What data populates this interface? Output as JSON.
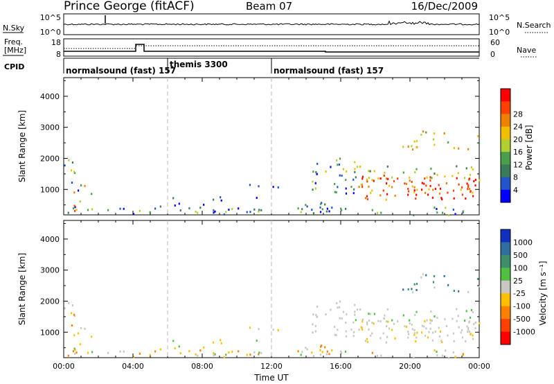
{
  "header": {
    "station": "Prince George (fitACF)",
    "beam": "Beam 07",
    "date": "16/Dec/2009"
  },
  "status_panels": {
    "nsky_label": "N.Sky",
    "nsky_ticks": [
      "10^5",
      "10^0"
    ],
    "nsearch_label": "N.Search",
    "nsearch_ticks": [
      "10^5",
      "10^0"
    ],
    "freq_label_1": "Freq.",
    "freq_label_2": "[MHz]",
    "freq_ticks": [
      "18",
      "8"
    ],
    "nave_label": "Nave",
    "nave_ticks": [
      "60",
      "0"
    ],
    "cpid_label": "CPID",
    "cpid_segments": [
      {
        "label": "normalsound (fast) 157",
        "start_hr": 0
      },
      {
        "label": "themis 3300",
        "start_hr": 6
      },
      {
        "label": "normalsound (fast) 157",
        "start_hr": 12
      }
    ]
  },
  "chart_data": [
    {
      "type": "heatmap",
      "name": "power",
      "ylabel": "Slant Range [km]",
      "xlabel": "",
      "xlim_hr": [
        0,
        24
      ],
      "ylim": [
        180,
        4600
      ],
      "yticks": [
        "1000",
        "2000",
        "3000",
        "4000"
      ],
      "colorbar_label": "Power [dB]",
      "colorbar_ticks": [
        "4",
        "8",
        "12",
        "16",
        "20",
        "24",
        "28"
      ],
      "colors": [
        "#0000ff",
        "#2255cc",
        "#3a7c5a",
        "#4aa04a",
        "#b0d030",
        "#f0c000",
        "#f08000",
        "#ff4000",
        "#ff0000"
      ]
    },
    {
      "type": "heatmap",
      "name": "velocity",
      "ylabel": "Slant Range [km]",
      "xlabel": "Time UT",
      "xlim_hr": [
        0,
        24
      ],
      "ylim": [
        180,
        4600
      ],
      "yticks": [
        "1000",
        "2000",
        "3000",
        "4000"
      ],
      "xticks": [
        "00:00",
        "04:00",
        "08:00",
        "12:00",
        "16:00",
        "20:00",
        "00:00"
      ],
      "colorbar_label": "Velocity [m s⁻¹]",
      "colorbar_ticks": [
        "1000",
        "500",
        "100",
        "25",
        "-25",
        "-100",
        "-500",
        "-1000"
      ],
      "colors": [
        "#1030c0",
        "#2f6fa0",
        "#3c8f6a",
        "#50c040",
        "#c8c8c0",
        "#ffc000",
        "#ff8000",
        "#ff4000",
        "#ff0000"
      ]
    }
  ]
}
